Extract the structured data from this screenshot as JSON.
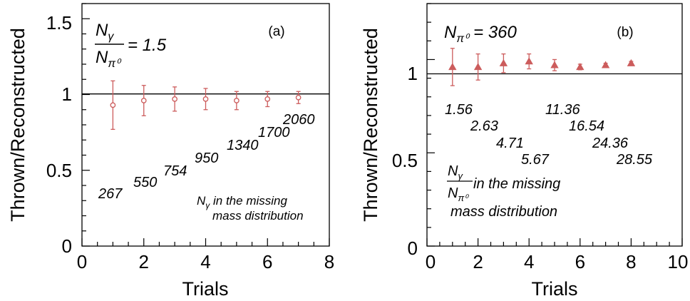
{
  "chart_data": [
    {
      "type": "scatter",
      "panel_label": "(a)",
      "xlabel": "Trials",
      "ylabel": "Thrown/Reconstructed",
      "xlim": [
        0,
        8
      ],
      "ylim": [
        0,
        1.6
      ],
      "x_ticks": [
        "0",
        "2",
        "4",
        "6",
        "8"
      ],
      "y_ticks": [
        "0",
        "0.5",
        "1",
        "1.5"
      ],
      "reference_line": 1,
      "marker": "open-circle",
      "color": "#cc5c5c",
      "series": [
        {
          "x": [
            1,
            2,
            3,
            4,
            5,
            6,
            7
          ],
          "y": [
            0.93,
            0.96,
            0.97,
            0.97,
            0.96,
            0.97,
            0.98
          ],
          "yerr_low": [
            0.16,
            0.1,
            0.08,
            0.07,
            0.06,
            0.05,
            0.04
          ],
          "yerr_high": [
            0.16,
            0.1,
            0.08,
            0.07,
            0.06,
            0.05,
            0.04
          ]
        }
      ],
      "fixed_ratio": {
        "num": "N",
        "num_sub": "γ",
        "den": "N",
        "den_sub": "π⁰",
        "value": "= 1.5"
      },
      "point_labels": [
        "267",
        "550",
        "754",
        "950",
        "1340",
        "1700",
        "2060"
      ],
      "caption": {
        "sym": "N",
        "sub": "γ",
        "line1": " in the missing",
        "line2": "mass distribution"
      }
    },
    {
      "type": "scatter",
      "panel_label": "(b)",
      "xlabel": "Trials",
      "ylabel": "Thrown/Reconstructed",
      "xlim": [
        0,
        10
      ],
      "ylim": [
        0,
        1.3
      ],
      "x_ticks": [
        "0",
        "2",
        "4",
        "6",
        "8",
        "10"
      ],
      "y_ticks": [
        "0",
        "0.5",
        "1"
      ],
      "reference_line": 1,
      "marker": "filled-triangle",
      "color": "#cc5c5c",
      "series": [
        {
          "x": [
            1,
            2,
            3,
            4,
            5,
            6,
            7,
            8
          ],
          "y": [
            0.96,
            0.96,
            0.98,
            0.99,
            0.97,
            0.96,
            0.97,
            0.98
          ],
          "yerr_low": [
            0.1,
            0.07,
            0.05,
            0.04,
            0.03,
            0.015,
            0.01,
            0.01
          ],
          "yerr_high": [
            0.1,
            0.07,
            0.05,
            0.04,
            0.03,
            0.015,
            0.01,
            0.01
          ]
        }
      ],
      "fixed_count": {
        "sym": "N",
        "sub": "π⁰",
        "value": " = 360"
      },
      "point_labels": [
        "1.56",
        "2.63",
        "4.71",
        "5.67",
        "11.36",
        "16.54",
        "24.36",
        "28.55"
      ],
      "caption": {
        "num": "N",
        "num_sub": "γ",
        "den": "N",
        "den_sub": "π⁰",
        "line1": " in the missing",
        "line2": "mass distribution"
      }
    }
  ]
}
